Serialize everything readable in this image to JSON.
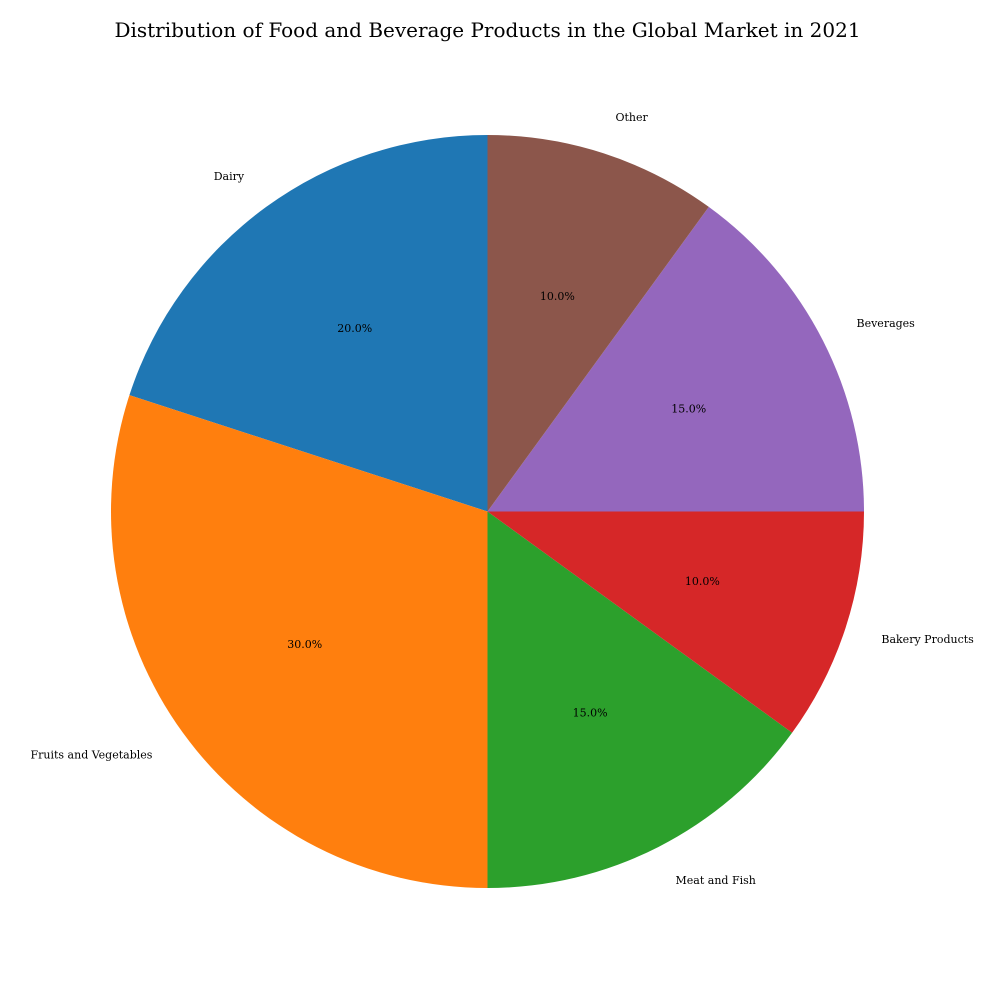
{
  "chart_data": {
    "type": "pie",
    "title": "Distribution of Food and Beverage Products in the Global Market in 2021",
    "categories": [
      "Dairy",
      "Fruits and Vegetables",
      "Meat and Fish",
      "Bakery Products",
      "Beverages",
      "Other"
    ],
    "values": [
      20,
      30,
      15,
      10,
      15,
      10
    ],
    "value_labels": [
      "20.0%",
      "30.0%",
      "15.0%",
      "10.0%",
      "15.0%",
      "10.0%"
    ],
    "colors": [
      "#1f77b4",
      "#ff7f0e",
      "#2ca02c",
      "#d62728",
      "#9467bd",
      "#8c564b"
    ],
    "start_angle_deg": 90,
    "direction": "counterclockwise",
    "legend": "none"
  }
}
